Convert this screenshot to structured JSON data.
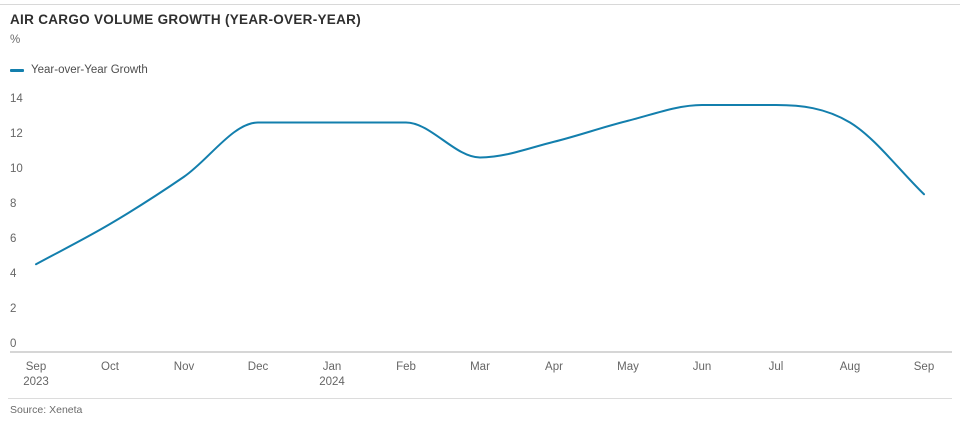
{
  "header": {
    "title": "AIR CARGO VOLUME GROWTH (YEAR-OVER-YEAR)",
    "unit": "%"
  },
  "legend": {
    "label": "Year-over-Year Growth",
    "color": "#137fad"
  },
  "chart_data": {
    "type": "line",
    "title": "AIR CARGO VOLUME GROWTH (YEAR-OVER-YEAR)",
    "xlabel": "",
    "ylabel": "%",
    "categories": [
      "Sep",
      "Oct",
      "Nov",
      "Dec",
      "Jan",
      "Feb",
      "Mar",
      "Apr",
      "May",
      "Jun",
      "Jul",
      "Aug",
      "Sep"
    ],
    "secondary_labels": [
      {
        "index": 0,
        "label": "2023"
      },
      {
        "index": 4,
        "label": "2024"
      }
    ],
    "series": [
      {
        "name": "Year-over-Year Growth",
        "values": [
          4.5,
          6.8,
          9.5,
          12.6,
          12.6,
          12.6,
          10.6,
          11.5,
          12.7,
          13.6,
          13.6,
          12.6,
          8.5
        ]
      }
    ],
    "yticks": [
      0,
      2,
      4,
      6,
      8,
      10,
      12,
      14
    ],
    "ylim": [
      0,
      14
    ],
    "grid": false,
    "legend_position": "top-left",
    "line_color": "#137fad",
    "axis_color": "#adadad",
    "tick_label_color": "#666666"
  },
  "footer": {
    "source": "Source: Xeneta"
  }
}
